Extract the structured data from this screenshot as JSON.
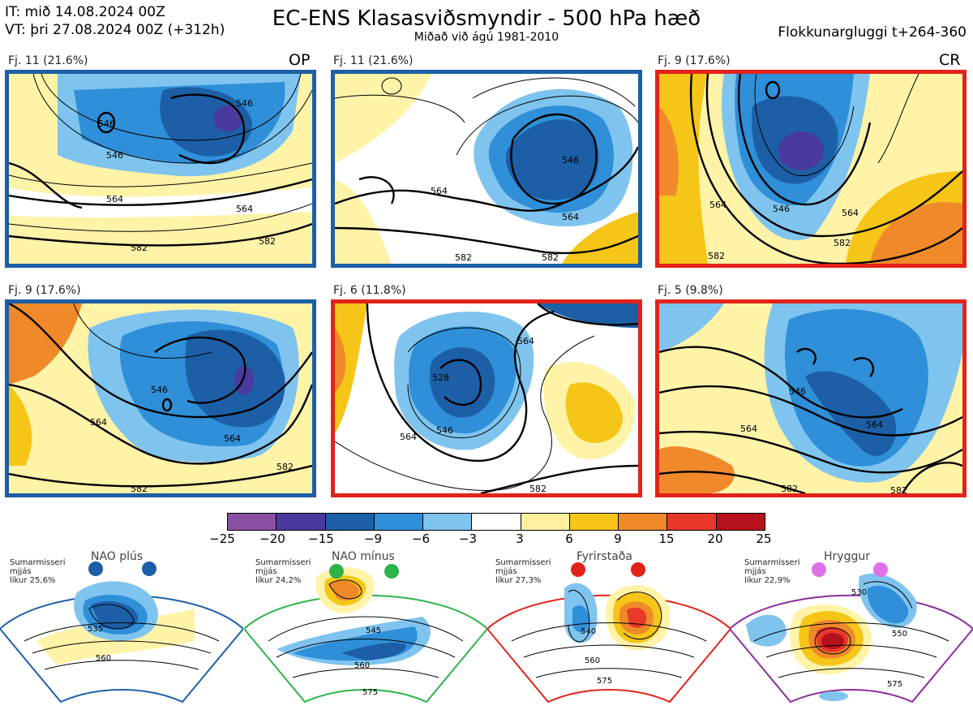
{
  "header": {
    "it_line": "IT: mið 14.08.2024 00Z",
    "vt_line": "VT: þri 27.08.2024 00Z  (+312h)",
    "title": "EC-ENS Klasasviðsmyndir - 500 hPa hæð",
    "subtitle": "Miðað við ágú 1981-2010",
    "window": "Flokkunargluggi t+264-360"
  },
  "panels": [
    {
      "label": "Fj. 11 (21.6%)",
      "tag": "OP",
      "frame": "#1c5fa6",
      "contours": [
        "546",
        "564",
        "582",
        "546",
        "564",
        "582",
        "546"
      ]
    },
    {
      "label": "Fj. 11 (21.6%)",
      "tag": "",
      "frame": "#1c5fa6",
      "contours": [
        "564",
        "546",
        "564",
        "582",
        "582"
      ]
    },
    {
      "label": "Fj. 9 (17.6%)",
      "tag": "CR",
      "frame": "#e2231a",
      "contours": [
        "546",
        "564",
        "582",
        "564",
        "582"
      ]
    },
    {
      "label": "Fj. 9 (17.6%)",
      "tag": "",
      "frame": "#1c5fa6",
      "contours": [
        "546",
        "564",
        "582",
        "582",
        "564"
      ]
    },
    {
      "label": "Fj. 6 (11.8%)",
      "tag": "",
      "frame": "#e2231a",
      "contours": [
        "528",
        "546",
        "564",
        "564",
        "582"
      ]
    },
    {
      "label": "Fj. 5 (9.8%)",
      "tag": "",
      "frame": "#e2231a",
      "contours": [
        "546",
        "564",
        "564",
        "582",
        "582"
      ]
    }
  ],
  "colorbar": {
    "ticks": [
      "−25",
      "−20",
      "−15",
      "−9",
      "−6",
      "−3",
      "3",
      "6",
      "9",
      "15",
      "20",
      "25"
    ],
    "colors": [
      "#8a4fa3",
      "#4a3a9e",
      "#1c5fa6",
      "#2f8fd8",
      "#7fc4ee",
      "#ffffff",
      "#fff0a0",
      "#f5c518",
      "#f0892a",
      "#e8382a",
      "#b5121b"
    ]
  },
  "regimes": [
    {
      "title": "NAO plús",
      "info": [
        "Sumarmisseri",
        "mjjás",
        "líkur 25,6%"
      ],
      "color": "#1c5fa6",
      "labels": [
        "535",
        "560"
      ]
    },
    {
      "title": "NAO mínus",
      "info": [
        "Sumarmisseri",
        "mjjás",
        "líkur 24,2%"
      ],
      "color": "#2db34a",
      "labels": [
        "545",
        "560",
        "575"
      ]
    },
    {
      "title": "Fyrirstaða",
      "info": [
        "Sumarmisseri",
        "mjjás",
        "líkur 27,3%"
      ],
      "color": "#e2231a",
      "labels": [
        "540",
        "560",
        "575"
      ]
    },
    {
      "title": "Hryggur",
      "info": [
        "Sumarmisseri",
        "mjjás",
        "líkur 22,9%"
      ],
      "color": "#e070e8",
      "labels": [
        "530",
        "550",
        "575"
      ]
    }
  ]
}
